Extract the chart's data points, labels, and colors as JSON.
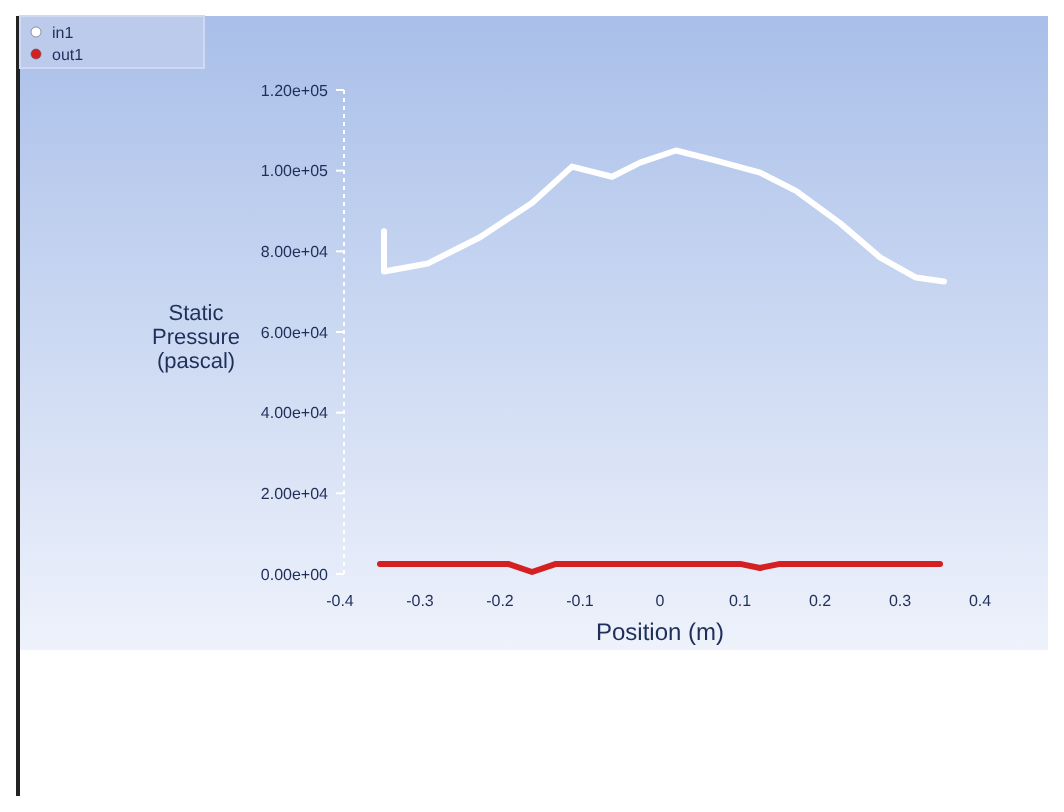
{
  "chart_data": {
    "type": "line",
    "xlabel": "Position (m)",
    "ylabel": "Static Pressure (pascal)",
    "xlim": [
      -0.4,
      0.4
    ],
    "xticks": [
      -0.4,
      -0.3,
      -0.2,
      -0.1,
      0,
      0.1,
      0.2,
      0.3,
      0.4
    ],
    "ylim": [
      0,
      120000
    ],
    "yticks": [
      {
        "value": 0,
        "label": "0.00e+00"
      },
      {
        "value": 20000,
        "label": "2.00e+04"
      },
      {
        "value": 40000,
        "label": "4.00e+04"
      },
      {
        "value": 60000,
        "label": "6.00e+04"
      },
      {
        "value": 80000,
        "label": "8.00e+04"
      },
      {
        "value": 100000,
        "label": "1.00e+05"
      },
      {
        "value": 120000,
        "label": "1.20e+05"
      }
    ],
    "legend": "top left",
    "grid": false,
    "series": [
      {
        "name": "in1",
        "color": "#ffffff",
        "x": [
          -0.345,
          -0.345,
          -0.29,
          -0.225,
          -0.16,
          -0.11,
          -0.06,
          -0.025,
          0.02,
          0.07,
          0.125,
          0.17,
          0.225,
          0.275,
          0.32,
          0.355
        ],
        "values": [
          85000,
          75000,
          77000,
          83500,
          92000,
          101000,
          98500,
          102000,
          105000,
          102500,
          99500,
          95000,
          87000,
          78500,
          73500,
          72500
        ]
      },
      {
        "name": "out1",
        "color": "#d42020",
        "x": [
          -0.35,
          -0.19,
          -0.16,
          -0.13,
          0.1,
          0.125,
          0.15,
          0.35
        ],
        "values": [
          2500,
          2500,
          500,
          2500,
          2500,
          1500,
          2500,
          2500
        ]
      }
    ]
  }
}
